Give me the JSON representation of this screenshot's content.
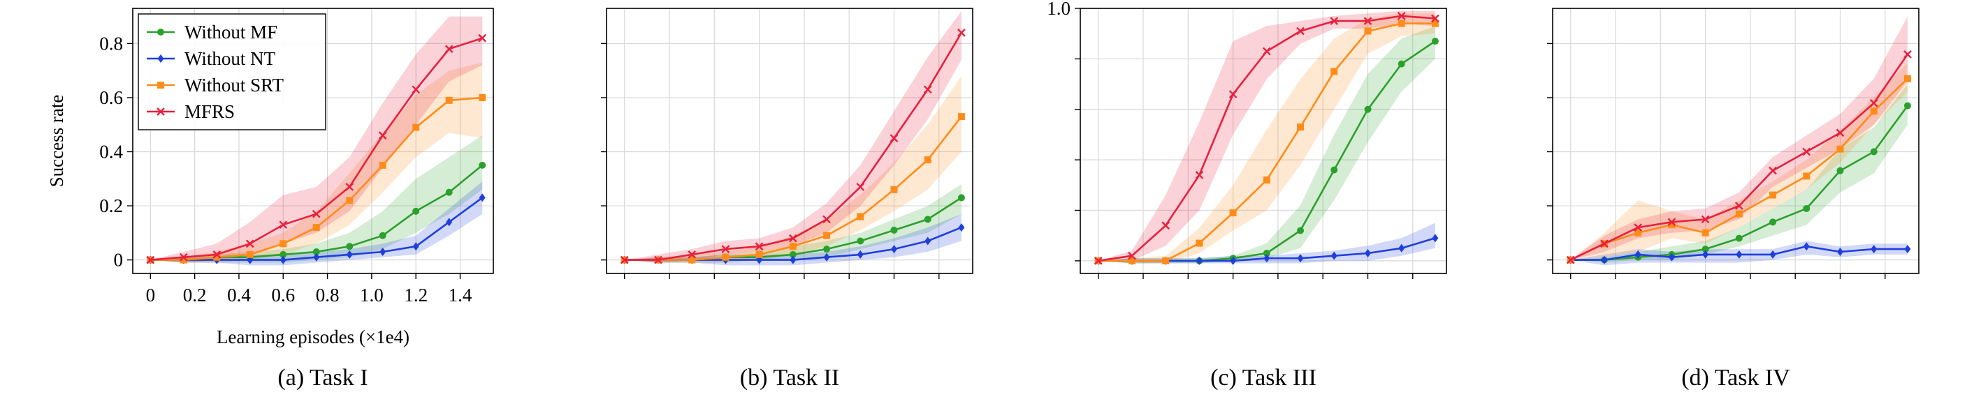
{
  "figure": {
    "captions": [
      "(a) Task I",
      "(b) Task II",
      "(c) Task III",
      "(d) Task IV"
    ]
  },
  "colors": {
    "Without MF": "#2ca02c",
    "Without NT": "#1f3fdd",
    "Without SRT": "#ff8c1a",
    "MFRS": "#e8203c"
  },
  "chart_data": [
    {
      "type": "line",
      "caption": "(a) Task I",
      "xlabel": "Learning episodes (×1e4)",
      "ylabel": "Success rate",
      "xlim": [
        -0.08,
        1.55
      ],
      "ylim": [
        -0.05,
        0.93
      ],
      "xticks": [
        0,
        0.2,
        0.4,
        0.6,
        0.8,
        1.0,
        1.2,
        1.4
      ],
      "xtick_labels": [
        "0",
        "0.2",
        "0.4",
        "0.6",
        "0.8",
        "1.0",
        "1.2",
        "1.4"
      ],
      "yticks": [
        0,
        0.2,
        0.4,
        0.6,
        0.8
      ],
      "ytick_labels": [
        "0",
        "0.2",
        "0.4",
        "0.6",
        "0.8"
      ],
      "grid": true,
      "legend": "top-left",
      "x": [
        0,
        0.15,
        0.3,
        0.45,
        0.6,
        0.75,
        0.9,
        1.05,
        1.2,
        1.35,
        1.5
      ],
      "series": [
        {
          "name": "Without MF",
          "values": [
            0,
            0.0,
            0.01,
            0.01,
            0.02,
            0.03,
            0.05,
            0.09,
            0.18,
            0.25,
            0.35
          ],
          "lower": [
            0,
            -0.01,
            -0.01,
            -0.01,
            -0.01,
            0.0,
            0.01,
            0.04,
            0.1,
            0.17,
            0.26
          ],
          "upper": [
            0,
            0.01,
            0.02,
            0.03,
            0.04,
            0.06,
            0.1,
            0.18,
            0.3,
            0.38,
            0.46
          ]
        },
        {
          "name": "Without NT",
          "values": [
            0,
            0.0,
            0.0,
            0.0,
            0.0,
            0.01,
            0.02,
            0.03,
            0.05,
            0.14,
            0.23
          ],
          "lower": [
            0,
            -0.01,
            -0.01,
            -0.02,
            -0.02,
            -0.01,
            0.0,
            0.01,
            0.02,
            0.09,
            0.17
          ],
          "upper": [
            0,
            0.01,
            0.01,
            0.02,
            0.02,
            0.03,
            0.04,
            0.06,
            0.09,
            0.19,
            0.29
          ]
        },
        {
          "name": "Without SRT",
          "values": [
            0,
            0.0,
            0.01,
            0.02,
            0.06,
            0.12,
            0.22,
            0.35,
            0.49,
            0.59,
            0.6
          ],
          "lower": [
            0,
            -0.01,
            -0.01,
            0.0,
            0.02,
            0.06,
            0.13,
            0.25,
            0.38,
            0.47,
            0.45
          ],
          "upper": [
            0,
            0.01,
            0.03,
            0.06,
            0.1,
            0.18,
            0.32,
            0.47,
            0.61,
            0.7,
            0.73
          ]
        },
        {
          "name": "MFRS",
          "values": [
            0,
            0.01,
            0.02,
            0.06,
            0.13,
            0.17,
            0.27,
            0.46,
            0.63,
            0.78,
            0.82
          ],
          "lower": [
            0,
            -0.01,
            0.0,
            0.02,
            0.06,
            0.1,
            0.18,
            0.34,
            0.5,
            0.66,
            0.72
          ],
          "upper": [
            0,
            0.03,
            0.06,
            0.14,
            0.24,
            0.27,
            0.38,
            0.58,
            0.76,
            0.9,
            0.9
          ]
        }
      ]
    },
    {
      "type": "line",
      "caption": "(b) Task II",
      "xlabel": "",
      "ylabel": "",
      "xlim": [
        -0.08,
        1.55
      ],
      "ylim": [
        -0.05,
        0.93
      ],
      "xticks": [
        0,
        0.2,
        0.4,
        0.6,
        0.8,
        1.0,
        1.2,
        1.4
      ],
      "xtick_labels": [],
      "yticks": [
        0,
        0.2,
        0.4,
        0.6,
        0.8
      ],
      "ytick_labels": [],
      "grid": true,
      "legend": "none",
      "x": [
        0,
        0.15,
        0.3,
        0.45,
        0.6,
        0.75,
        0.9,
        1.05,
        1.2,
        1.35,
        1.5
      ],
      "series": [
        {
          "name": "Without MF",
          "values": [
            0,
            0.0,
            0.0,
            0.01,
            0.01,
            0.02,
            0.04,
            0.07,
            0.11,
            0.15,
            0.23
          ],
          "lower": [
            0,
            -0.01,
            -0.01,
            -0.01,
            0.0,
            0.0,
            0.01,
            0.04,
            0.07,
            0.1,
            0.17
          ],
          "upper": [
            0,
            0.01,
            0.01,
            0.02,
            0.03,
            0.05,
            0.07,
            0.1,
            0.15,
            0.2,
            0.28
          ]
        },
        {
          "name": "Without NT",
          "values": [
            0,
            0.0,
            0.0,
            0.0,
            0.0,
            0.0,
            0.01,
            0.02,
            0.04,
            0.07,
            0.12
          ],
          "lower": [
            0,
            -0.01,
            -0.01,
            -0.02,
            -0.02,
            -0.02,
            -0.01,
            0.0,
            0.01,
            0.03,
            0.07
          ],
          "upper": [
            0,
            0.01,
            0.01,
            0.02,
            0.02,
            0.02,
            0.03,
            0.05,
            0.08,
            0.12,
            0.17
          ]
        },
        {
          "name": "Without SRT",
          "values": [
            0,
            0.0,
            0.0,
            0.01,
            0.02,
            0.05,
            0.09,
            0.16,
            0.26,
            0.37,
            0.53
          ],
          "lower": [
            0,
            -0.01,
            -0.01,
            -0.01,
            0.0,
            0.02,
            0.05,
            0.11,
            0.18,
            0.26,
            0.4
          ],
          "upper": [
            0,
            0.01,
            0.02,
            0.03,
            0.05,
            0.09,
            0.15,
            0.24,
            0.36,
            0.5,
            0.68
          ]
        },
        {
          "name": "MFRS",
          "values": [
            0,
            0.0,
            0.02,
            0.04,
            0.05,
            0.08,
            0.15,
            0.27,
            0.45,
            0.63,
            0.84
          ],
          "lower": [
            0,
            -0.01,
            0.0,
            0.02,
            0.03,
            0.05,
            0.1,
            0.2,
            0.35,
            0.52,
            0.74
          ],
          "upper": [
            0,
            0.02,
            0.04,
            0.07,
            0.08,
            0.12,
            0.21,
            0.35,
            0.55,
            0.75,
            0.92
          ]
        }
      ]
    },
    {
      "type": "line",
      "caption": "(c) Task III",
      "xlabel": "",
      "ylabel": "",
      "xlim": [
        -0.08,
        1.55
      ],
      "ylim": [
        -0.05,
        1.0
      ],
      "xticks": [
        0,
        0.2,
        0.4,
        0.6,
        0.8,
        1.0,
        1.2,
        1.4
      ],
      "xtick_labels": [],
      "yticks": [
        0,
        0.2,
        0.4,
        0.6,
        0.8,
        1.0
      ],
      "ytick_labels": [
        "",
        "",
        "",
        "",
        "",
        "1.0"
      ],
      "grid": true,
      "legend": "none",
      "x": [
        0,
        0.15,
        0.3,
        0.45,
        0.6,
        0.75,
        0.9,
        1.05,
        1.2,
        1.35,
        1.5
      ],
      "series": [
        {
          "name": "Without MF",
          "values": [
            0,
            0.0,
            0.0,
            0.0,
            0.01,
            0.03,
            0.12,
            0.36,
            0.6,
            0.78,
            0.87
          ],
          "lower": [
            0,
            -0.01,
            -0.01,
            -0.01,
            0.0,
            0.01,
            0.05,
            0.24,
            0.47,
            0.67,
            0.8
          ],
          "upper": [
            0,
            0.01,
            0.01,
            0.01,
            0.02,
            0.07,
            0.22,
            0.5,
            0.74,
            0.88,
            0.93
          ]
        },
        {
          "name": "Without NT",
          "values": [
            0,
            0.0,
            0.0,
            0.0,
            0.0,
            0.01,
            0.01,
            0.02,
            0.03,
            0.05,
            0.09
          ],
          "lower": [
            0,
            -0.01,
            -0.01,
            -0.01,
            -0.01,
            -0.01,
            -0.01,
            0.0,
            0.0,
            0.02,
            0.05
          ],
          "upper": [
            0,
            0.01,
            0.01,
            0.01,
            0.02,
            0.02,
            0.03,
            0.04,
            0.06,
            0.09,
            0.15
          ]
        },
        {
          "name": "Without SRT",
          "values": [
            0,
            0.0,
            0.0,
            0.07,
            0.19,
            0.32,
            0.53,
            0.75,
            0.91,
            0.94,
            0.94
          ],
          "lower": [
            0,
            -0.01,
            -0.01,
            0.03,
            0.12,
            0.2,
            0.38,
            0.6,
            0.82,
            0.89,
            0.9
          ],
          "upper": [
            0,
            0.01,
            0.02,
            0.13,
            0.3,
            0.52,
            0.72,
            0.88,
            0.96,
            0.98,
            0.98
          ]
        },
        {
          "name": "MFRS",
          "values": [
            0,
            0.02,
            0.14,
            0.34,
            0.66,
            0.83,
            0.91,
            0.95,
            0.95,
            0.97,
            0.96
          ],
          "lower": [
            0,
            0.0,
            0.06,
            0.2,
            0.5,
            0.72,
            0.86,
            0.92,
            0.92,
            0.94,
            0.93
          ],
          "upper": [
            0,
            0.04,
            0.26,
            0.55,
            0.87,
            0.93,
            0.95,
            0.97,
            0.98,
            0.99,
            0.99
          ]
        }
      ]
    },
    {
      "type": "line",
      "caption": "(d) Task IV",
      "xlabel": "",
      "ylabel": "",
      "xlim": [
        -0.08,
        1.55
      ],
      "ylim": [
        -0.05,
        0.93
      ],
      "xticks": [
        0,
        0.2,
        0.4,
        0.6,
        0.8,
        1.0,
        1.2,
        1.4
      ],
      "xtick_labels": [],
      "yticks": [
        0,
        0.2,
        0.4,
        0.6,
        0.8
      ],
      "ytick_labels": [],
      "grid": true,
      "legend": "none",
      "x": [
        0,
        0.15,
        0.3,
        0.45,
        0.6,
        0.75,
        0.9,
        1.05,
        1.2,
        1.35,
        1.5
      ],
      "series": [
        {
          "name": "Without MF",
          "values": [
            0,
            0.0,
            0.01,
            0.02,
            0.04,
            0.08,
            0.14,
            0.19,
            0.33,
            0.4,
            0.57
          ],
          "lower": [
            0,
            -0.01,
            0.0,
            0.0,
            0.02,
            0.05,
            0.09,
            0.13,
            0.25,
            0.32,
            0.5
          ],
          "upper": [
            0,
            0.01,
            0.03,
            0.05,
            0.07,
            0.12,
            0.19,
            0.26,
            0.41,
            0.49,
            0.65
          ]
        },
        {
          "name": "Without NT",
          "values": [
            0,
            0.0,
            0.02,
            0.01,
            0.02,
            0.02,
            0.02,
            0.05,
            0.03,
            0.04,
            0.04
          ],
          "lower": [
            0,
            -0.02,
            -0.01,
            -0.01,
            -0.01,
            -0.01,
            0.0,
            0.02,
            0.01,
            0.02,
            0.02
          ],
          "upper": [
            0,
            0.02,
            0.04,
            0.03,
            0.04,
            0.04,
            0.04,
            0.07,
            0.05,
            0.06,
            0.06
          ]
        },
        {
          "name": "Without SRT",
          "values": [
            0,
            0.06,
            0.1,
            0.13,
            0.1,
            0.17,
            0.24,
            0.31,
            0.41,
            0.55,
            0.67
          ],
          "lower": [
            0,
            0.01,
            0.03,
            0.08,
            0.06,
            0.12,
            0.19,
            0.26,
            0.36,
            0.5,
            0.62
          ],
          "upper": [
            0,
            0.1,
            0.22,
            0.18,
            0.15,
            0.22,
            0.29,
            0.37,
            0.48,
            0.6,
            0.73
          ]
        },
        {
          "name": "MFRS",
          "values": [
            0,
            0.06,
            0.12,
            0.14,
            0.15,
            0.2,
            0.33,
            0.4,
            0.47,
            0.58,
            0.76
          ],
          "lower": [
            0,
            0.03,
            0.08,
            0.1,
            0.11,
            0.15,
            0.27,
            0.34,
            0.41,
            0.5,
            0.66
          ],
          "upper": [
            0,
            0.09,
            0.15,
            0.18,
            0.19,
            0.25,
            0.38,
            0.46,
            0.54,
            0.67,
            0.9
          ]
        }
      ]
    }
  ]
}
